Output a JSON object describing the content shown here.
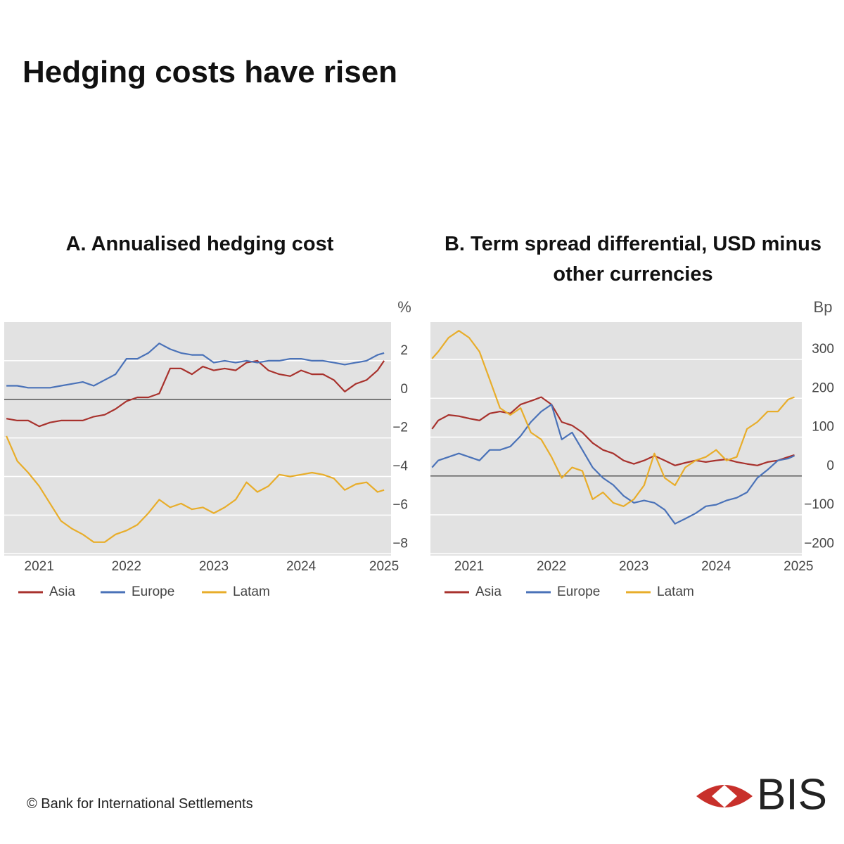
{
  "title": "Hedging costs have risen",
  "footer": "© Bank for International Settlements",
  "logo": "BIS",
  "chart_data": [
    {
      "type": "line",
      "title": "A. Annualised hedging cost",
      "y_label": "%",
      "x": [
        2021.125,
        2021.25,
        2021.375,
        2021.5,
        2021.625,
        2021.75,
        2021.875,
        2022,
        2022.125,
        2022.25,
        2022.375,
        2022.5,
        2022.625,
        2022.75,
        2022.875,
        2023,
        2023.125,
        2023.25,
        2023.375,
        2023.5,
        2023.625,
        2023.75,
        2023.875,
        2024,
        2024.125,
        2024.25,
        2024.375,
        2024.5,
        2024.625,
        2024.75,
        2024.875,
        2025,
        2025.125,
        2025.25,
        2025.375,
        2025.45
      ],
      "xlim": [
        2021.1,
        2025.53
      ],
      "xticks": [
        {
          "value": 2021.5,
          "label": "2021"
        },
        {
          "value": 2022.5,
          "label": "2022"
        },
        {
          "value": 2023.5,
          "label": "2023"
        },
        {
          "value": 2024.5,
          "label": "2024"
        },
        {
          "value": 2025.45,
          "label": "2025"
        }
      ],
      "ylim": [
        -8.1,
        4.0
      ],
      "yticks": [
        2,
        0,
        {
          "value": -2,
          "label": "−2"
        },
        {
          "value": -4,
          "label": "−4"
        },
        {
          "value": -6,
          "label": "−6"
        },
        {
          "value": -8,
          "label": "−8"
        }
      ],
      "grid": true,
      "legend": "bottom",
      "series": [
        {
          "name": "Asia",
          "color": "#a8322d",
          "values": [
            -1.0,
            -1.1,
            -1.1,
            -1.4,
            -1.2,
            -1.1,
            -1.1,
            -1.1,
            -0.9,
            -0.8,
            -0.5,
            -0.1,
            0.1,
            0.1,
            0.3,
            1.6,
            1.6,
            1.3,
            1.7,
            1.5,
            1.6,
            1.5,
            1.9,
            2.0,
            1.5,
            1.3,
            1.2,
            1.5,
            1.3,
            1.3,
            1.0,
            0.4,
            0.8,
            1.0,
            1.5,
            2.0
          ]
        },
        {
          "name": "Europe",
          "color": "#4a72b8",
          "values": [
            0.7,
            0.7,
            0.6,
            0.6,
            0.6,
            0.7,
            0.8,
            0.9,
            0.7,
            1.0,
            1.3,
            2.1,
            2.1,
            2.4,
            2.9,
            2.6,
            2.4,
            2.3,
            2.3,
            1.9,
            2.0,
            1.9,
            2.0,
            1.9,
            2.0,
            2.0,
            2.1,
            2.1,
            2.0,
            2.0,
            1.9,
            1.8,
            1.9,
            2.0,
            2.3,
            2.4
          ]
        },
        {
          "name": "Latam",
          "color": "#e8ad2a",
          "values": [
            -1.9,
            -3.2,
            -3.8,
            -4.5,
            -5.4,
            -6.3,
            -6.7,
            -7.0,
            -7.4,
            -7.4,
            -7.0,
            -6.8,
            -6.5,
            -5.9,
            -5.2,
            -5.6,
            -5.4,
            -5.7,
            -5.6,
            -5.9,
            -5.6,
            -5.2,
            -4.3,
            -4.8,
            -4.5,
            -3.9,
            -4.0,
            -3.9,
            -3.8,
            -3.9,
            -4.1,
            -4.7,
            -4.4,
            -4.3,
            -4.8,
            -4.7
          ]
        }
      ]
    },
    {
      "type": "line",
      "title": "B. Term spread differential, USD minus other currencies",
      "y_label": "Bp",
      "x": [
        2021.05,
        2021.125,
        2021.25,
        2021.375,
        2021.5,
        2021.625,
        2021.75,
        2021.875,
        2022,
        2022.125,
        2022.25,
        2022.375,
        2022.5,
        2022.625,
        2022.75,
        2022.875,
        2023,
        2023.125,
        2023.25,
        2023.375,
        2023.5,
        2023.625,
        2023.75,
        2023.875,
        2024,
        2024.125,
        2024.25,
        2024.375,
        2024.5,
        2024.625,
        2024.75,
        2024.875,
        2025,
        2025.125,
        2025.25,
        2025.375,
        2025.45
      ],
      "xlim": [
        2021.03,
        2025.54
      ],
      "xticks": [
        {
          "value": 2021.5,
          "label": "2021"
        },
        {
          "value": 2022.5,
          "label": "2022"
        },
        {
          "value": 2023.5,
          "label": "2023"
        },
        {
          "value": 2024.5,
          "label": "2024"
        },
        {
          "value": 2025.5,
          "label": "2025"
        }
      ],
      "ylim": [
        -205,
        396
      ],
      "yticks": [
        300,
        200,
        100,
        0,
        {
          "value": -100,
          "label": "−100"
        },
        {
          "value": -200,
          "label": "−200"
        }
      ],
      "grid": true,
      "legend": "bottom",
      "series": [
        {
          "name": "Asia",
          "color": "#a8322d",
          "values": [
            121,
            143,
            157,
            154,
            148,
            143,
            161,
            166,
            161,
            184,
            193,
            203,
            184,
            139,
            130,
            112,
            85,
            67,
            58,
            40,
            31,
            40,
            52,
            40,
            27,
            34,
            40,
            36,
            40,
            43,
            36,
            31,
            27,
            36,
            40,
            49,
            54
          ]
        },
        {
          "name": "Europe",
          "color": "#4a72b8",
          "values": [
            22,
            40,
            49,
            58,
            49,
            40,
            67,
            67,
            76,
            103,
            139,
            166,
            184,
            94,
            112,
            67,
            22,
            -5,
            -23,
            -51,
            -69,
            -63,
            -69,
            -87,
            -123,
            -110,
            -96,
            -78,
            -74,
            -63,
            -56,
            -42,
            -5,
            16,
            40,
            45,
            52
          ]
        },
        {
          "name": "Latam",
          "color": "#e8ad2a",
          "values": [
            302,
            320,
            356,
            374,
            356,
            320,
            248,
            175,
            157,
            175,
            112,
            94,
            49,
            -5,
            22,
            13,
            -60,
            -42,
            -69,
            -78,
            -60,
            -24,
            58,
            -5,
            -24,
            22,
            40,
            49,
            67,
            40,
            49,
            121,
            139,
            166,
            166,
            197,
            203
          ]
        }
      ]
    }
  ]
}
